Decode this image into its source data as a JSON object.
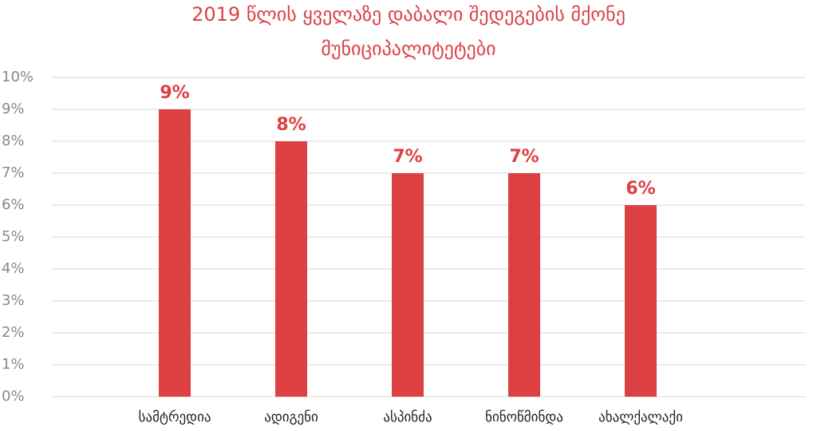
{
  "chart_data": {
    "type": "bar",
    "title": [
      "2019 წლის ყველაზე დაბალი შედეგების მქონე",
      "მუნიციპალიტეტები"
    ],
    "categories": [
      "სამტრედია",
      "ადიგენი",
      "ასპინძა",
      "ნინოწმინდა",
      "ახალქალაქი"
    ],
    "values": [
      9,
      8,
      7,
      7,
      6
    ],
    "value_labels": [
      "9%",
      "8%",
      "7%",
      "7%",
      "6%"
    ],
    "color": "#dc4043",
    "ylim": [
      0,
      10
    ],
    "yticks": [
      {
        "value": 0,
        "label": "0%"
      },
      {
        "value": 1,
        "label": "1%"
      },
      {
        "value": 2,
        "label": "2%"
      },
      {
        "value": 3,
        "label": "3%"
      },
      {
        "value": 4,
        "label": "4%"
      },
      {
        "value": 5,
        "label": "5%"
      },
      {
        "value": 6,
        "label": "6%"
      },
      {
        "value": 7,
        "label": "7%"
      },
      {
        "value": 8,
        "label": "8%"
      },
      {
        "value": 9,
        "label": "9%"
      },
      {
        "value": 10,
        "label": "10%"
      }
    ],
    "grid": true
  }
}
